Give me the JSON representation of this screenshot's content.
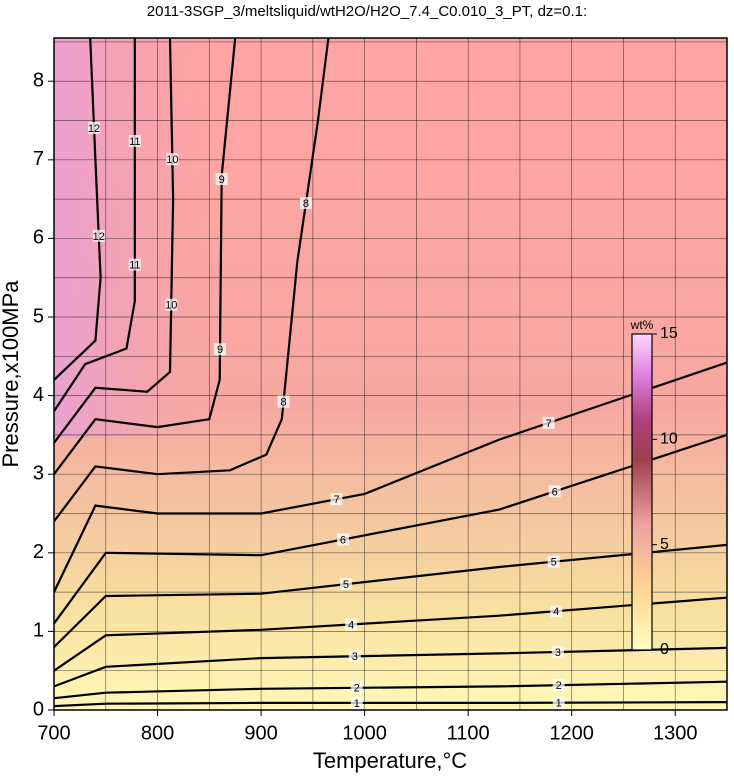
{
  "chart_data": {
    "type": "contour",
    "title": "2011-3SGP_3/meltsliquid/wtH2O/H2O_7.4_C0.010_3_PT, dz=0.1:",
    "xlabel": "Temperature,°C",
    "ylabel": "Pressure,x100MPa",
    "xlim": [
      700,
      1350
    ],
    "ylim": [
      0,
      8.55
    ],
    "xticks": [
      700,
      800,
      900,
      1000,
      1100,
      1200,
      1300
    ],
    "yticks": [
      0,
      1,
      2,
      3,
      4,
      5,
      6,
      7,
      8
    ],
    "xgrid": [
      750,
      800,
      850,
      900,
      950,
      1000,
      1050,
      1100,
      1150,
      1200,
      1250,
      1300
    ],
    "ygrid": [
      0.5,
      1,
      1.5,
      2,
      2.5,
      3,
      3.5,
      4,
      4.5,
      5,
      5.5,
      6,
      6.5,
      7,
      7.5,
      8,
      8.5
    ],
    "line_color": "#000000",
    "contours": [
      {
        "level": 1,
        "x": [
          700,
          750,
          900,
          1130,
          1350
        ],
        "y": [
          0.05,
          0.08,
          0.09,
          0.09,
          0.1
        ]
      },
      {
        "level": 2,
        "x": [
          700,
          750,
          900,
          1130,
          1350
        ],
        "y": [
          0.15,
          0.22,
          0.27,
          0.3,
          0.36
        ]
      },
      {
        "level": 3,
        "x": [
          700,
          750,
          900,
          1130,
          1350
        ],
        "y": [
          0.3,
          0.55,
          0.66,
          0.72,
          0.79
        ]
      },
      {
        "level": 4,
        "x": [
          700,
          750,
          900,
          1130,
          1350
        ],
        "y": [
          0.5,
          0.95,
          1.02,
          1.2,
          1.43
        ]
      },
      {
        "level": 5,
        "x": [
          700,
          750,
          900,
          1130,
          1350
        ],
        "y": [
          0.8,
          1.45,
          1.48,
          1.82,
          2.1
        ]
      },
      {
        "level": 6,
        "x": [
          700,
          750,
          900,
          1130,
          1350
        ],
        "y": [
          1.1,
          2.0,
          1.97,
          2.55,
          3.5
        ]
      },
      {
        "level": 7,
        "x": [
          700,
          740,
          800,
          900,
          1000,
          1130,
          1350
        ],
        "y": [
          1.5,
          2.6,
          2.5,
          2.5,
          2.75,
          3.44,
          4.42
        ]
      },
      {
        "level": 8,
        "x": [
          700,
          740,
          800,
          870,
          905,
          920,
          935,
          955,
          965
        ],
        "y": [
          2.4,
          3.1,
          3.0,
          3.05,
          3.25,
          3.7,
          5.7,
          7.5,
          8.55
        ]
      },
      {
        "level": 9,
        "x": [
          700,
          740,
          800,
          850,
          860,
          862,
          875
        ],
        "y": [
          3.0,
          3.7,
          3.6,
          3.7,
          4.2,
          6.8,
          8.55
        ]
      },
      {
        "level": 10,
        "x": [
          700,
          740,
          790,
          812,
          815,
          812
        ],
        "y": [
          3.4,
          4.1,
          4.05,
          4.3,
          6.5,
          8.55
        ]
      },
      {
        "level": 11,
        "x": [
          700,
          730,
          770,
          778,
          778
        ],
        "y": [
          3.8,
          4.4,
          4.6,
          5.2,
          8.55
        ]
      },
      {
        "level": 12,
        "x": [
          700,
          740,
          745,
          740,
          735
        ],
        "y": [
          4.2,
          4.7,
          5.5,
          7.0,
          8.55
        ]
      }
    ],
    "colorbar": {
      "label": "wt%",
      "lim": [
        0,
        15
      ],
      "ticks": [
        0,
        5,
        10,
        15
      ]
    }
  }
}
